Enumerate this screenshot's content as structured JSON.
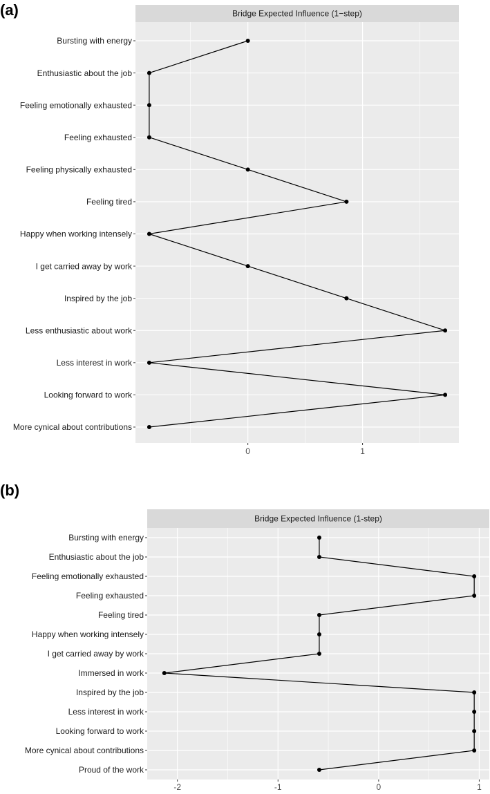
{
  "chart_data": [
    {
      "type": "line",
      "panel_label": "(a)",
      "title": "Bridge Expected Influence (1−step)",
      "categories": [
        "Bursting with energy",
        "Enthusiastic about the job",
        "Feeling emotionally exhausted",
        "Feeling exhausted",
        "Feeling physically exhausted",
        "Feeling tired",
        "Happy when working intensely",
        "I get carried away by work",
        "Inspired by the job",
        "Less enthusiastic about work",
        "Less interest in work",
        "Looking forward to work",
        "More cynical about contributions"
      ],
      "values": [
        0,
        -0.86,
        -0.86,
        -0.86,
        0,
        0.86,
        -0.86,
        0,
        0.86,
        1.72,
        -0.86,
        1.72,
        -0.86
      ],
      "xticks": [
        0,
        1
      ],
      "xtick_labels": [
        "0",
        "1"
      ],
      "xlim": [
        -0.98,
        1.84
      ],
      "xlabel": "",
      "ylabel": ""
    },
    {
      "type": "line",
      "panel_label": "(b)",
      "title": "Bridge Expected Influence (1-step)",
      "categories": [
        "Bursting with energy",
        "Enthusiastic about the job",
        "Feeling emotionally exhausted",
        "Feeling exhausted",
        "Feeling tired",
        "Happy when working intensely",
        "I get carried away by work",
        "Immersed in work",
        "Inspired by the job",
        "Less interest in work",
        "Looking forward to work",
        "More cynical about contributions",
        "Proud of the work"
      ],
      "values": [
        -0.59,
        -0.59,
        0.95,
        0.95,
        -0.59,
        -0.59,
        -0.59,
        -2.13,
        0.95,
        0.95,
        0.95,
        0.95,
        -0.59
      ],
      "xticks": [
        -2,
        -1,
        0,
        1
      ],
      "xtick_labels": [
        "-2",
        "-1",
        "0",
        "1"
      ],
      "xlim": [
        -2.3,
        1.1
      ],
      "xlabel": "",
      "ylabel": ""
    }
  ],
  "colors": {
    "panel_bg": "#ebebeb",
    "strip_bg": "#d9d9d9",
    "grid": "#ffffff",
    "line": "#000000",
    "point": "#000000"
  }
}
